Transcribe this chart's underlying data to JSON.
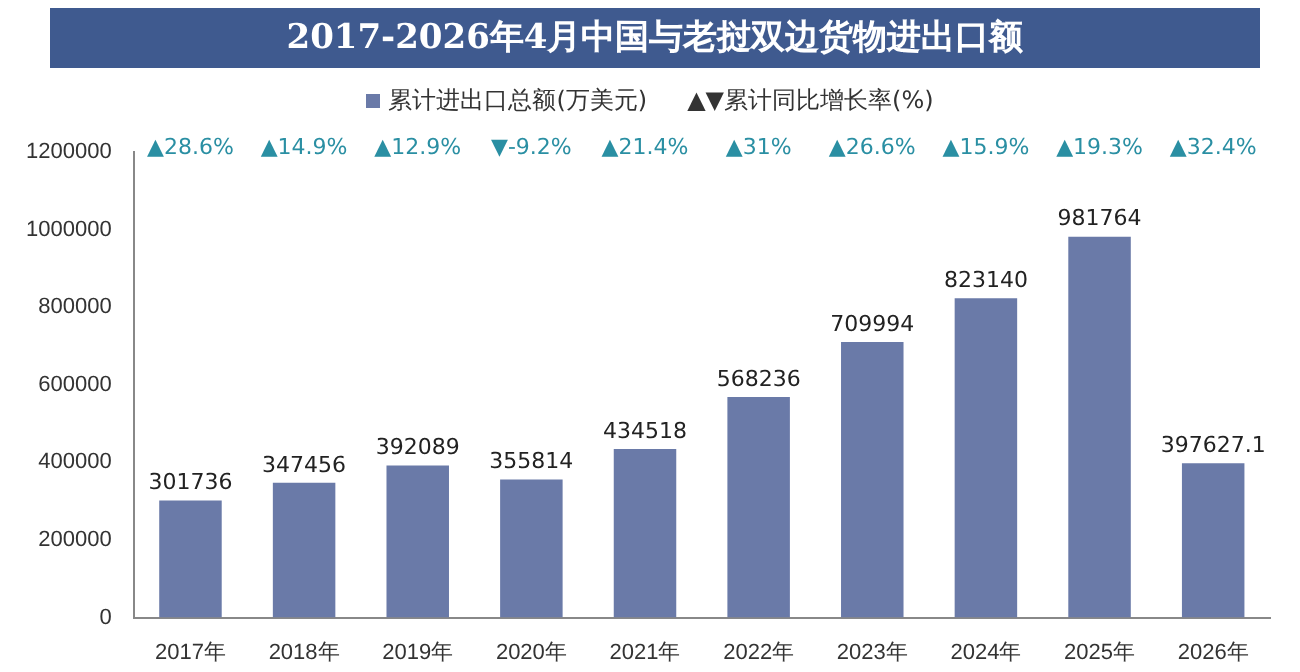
{
  "chart_data": {
    "type": "bar",
    "title": "2017-2026年4月中国与老挝双边货物进出口额",
    "categories": [
      "2017年",
      "2018年",
      "2019年",
      "2020年",
      "2021年",
      "2022年",
      "2023年",
      "2024年",
      "2025年",
      "2026年"
    ],
    "series": [
      {
        "name": "累计进出口总额(万美元)",
        "color": "#6a7aa8",
        "values": [
          301736,
          347456,
          392089,
          355814,
          434518,
          568236,
          709994,
          823140,
          981764,
          397627.1
        ]
      }
    ],
    "ylim": [
      0,
      1200000
    ],
    "yticks": [
      0,
      200000,
      400000,
      600000,
      800000,
      1000000,
      1200000
    ],
    "grid": false,
    "legend": "top",
    "data_labels": true,
    "annotations": [
      "▲▼累计同比增长率(%)",
      "▲28.6%",
      "▲14.9%",
      "▲12.9%",
      "▼-9.2%",
      "▲21.4%",
      "▲31%",
      "▲26.6%",
      "▲15.9%",
      "▲19.3%",
      "▲32.4%"
    ]
  }
}
